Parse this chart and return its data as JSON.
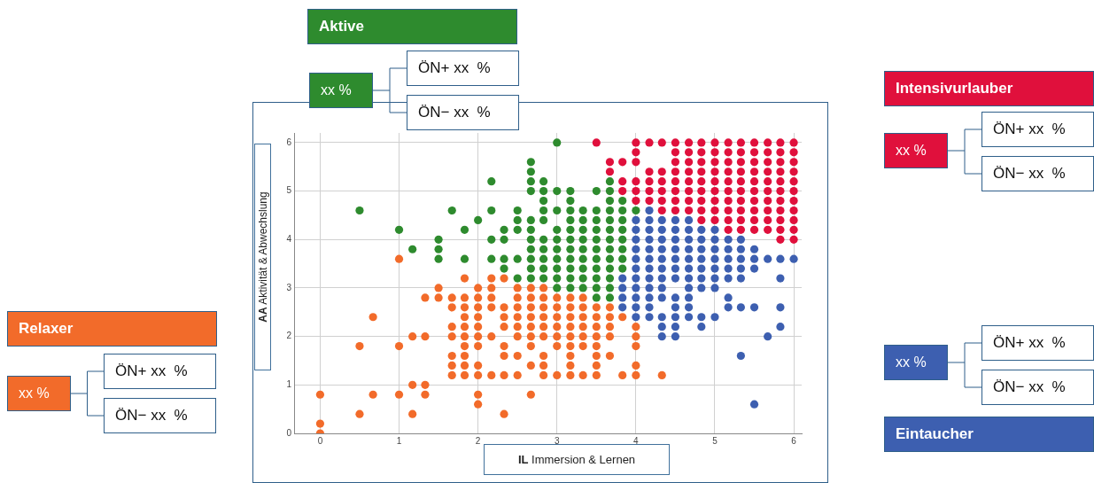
{
  "chart_data": {
    "type": "scatter",
    "xlabel": "IL Immersion & Lernen",
    "ylabel": "AA Aktivität & Abwechslung",
    "xlim": [
      -0.33,
      6.1
    ],
    "ylim": [
      0,
      6.2
    ],
    "xticks": [
      0,
      1,
      2,
      3,
      4,
      5,
      6
    ],
    "yticks": [
      0,
      1,
      2,
      3,
      4,
      5,
      6
    ],
    "grid": true,
    "marker": "circle",
    "series": [
      {
        "name": "Aktive",
        "color": "#2e8b2e",
        "x": [
          3,
          2.67,
          2.67,
          2.17,
          2.67,
          2.83,
          3.67,
          2.67,
          2.83,
          3,
          3.17,
          3.5,
          3.67,
          2.83,
          3.17,
          3.67,
          3.83,
          0.5,
          1.67,
          2.17,
          2.5,
          2.83,
          3,
          3.17,
          3.33,
          3.5,
          3.67,
          3.83,
          4,
          2,
          2.5,
          2.67,
          2.83,
          3.17,
          3.33,
          3.5,
          3.67,
          3.83,
          1,
          1.83,
          2.33,
          2.5,
          2.67,
          3,
          3.17,
          3.33,
          3.5,
          3.67,
          3.83,
          1.5,
          2.17,
          2.33,
          2.67,
          2.83,
          3,
          3.17,
          3.33,
          3.5,
          3.67,
          3.83,
          1.17,
          1.5,
          2.67,
          2.83,
          3,
          3.17,
          3.33,
          3.5,
          3.67,
          3.83,
          1.5,
          1.83,
          2.17,
          2.33,
          2.5,
          2.67,
          2.83,
          3,
          3.17,
          3.33,
          3.5,
          3.67,
          3.83,
          2.33,
          2.67,
          2.83,
          3,
          3.17,
          3.33,
          3.5,
          3.67,
          3.83,
          2.5,
          2.67,
          2.83,
          3,
          3.17,
          3.33,
          3.5,
          3.67,
          3,
          3.17,
          3.33,
          3.5,
          3.67,
          3.5,
          3.67
        ],
        "values": [
          6,
          5.6,
          5.4,
          5.2,
          5.2,
          5.2,
          5.2,
          5,
          5,
          5,
          5,
          5,
          5,
          4.8,
          4.8,
          4.8,
          4.8,
          4.6,
          4.6,
          4.6,
          4.6,
          4.6,
          4.6,
          4.6,
          4.6,
          4.6,
          4.6,
          4.6,
          4.6,
          4.4,
          4.4,
          4.4,
          4.4,
          4.4,
          4.4,
          4.4,
          4.4,
          4.4,
          4.2,
          4.2,
          4.2,
          4.2,
          4.2,
          4.2,
          4.2,
          4.2,
          4.2,
          4.2,
          4.2,
          4,
          4,
          4,
          4,
          4,
          4,
          4,
          4,
          4,
          4,
          4,
          3.8,
          3.8,
          3.8,
          3.8,
          3.8,
          3.8,
          3.8,
          3.8,
          3.8,
          3.8,
          3.6,
          3.6,
          3.6,
          3.6,
          3.6,
          3.6,
          3.6,
          3.6,
          3.6,
          3.6,
          3.6,
          3.6,
          3.6,
          3.4,
          3.4,
          3.4,
          3.4,
          3.4,
          3.4,
          3.4,
          3.4,
          3.4,
          3.2,
          3.2,
          3.2,
          3.2,
          3.2,
          3.2,
          3.2,
          3.2,
          3,
          3,
          3,
          3,
          3,
          2.8,
          2.8
        ]
      },
      {
        "name": "Intensivurlauber",
        "color": "#e0103c",
        "x": [
          3.5,
          4,
          4.17,
          4.33,
          4.5,
          4.67,
          4.83,
          5,
          5.17,
          5.33,
          5.5,
          5.67,
          5.83,
          6,
          4,
          4.5,
          4.67,
          4.83,
          5,
          5.17,
          5.33,
          5.5,
          5.67,
          5.83,
          6,
          3.67,
          3.83,
          4,
          4.5,
          4.67,
          4.83,
          5,
          5.17,
          5.33,
          5.5,
          5.67,
          5.83,
          6,
          3.67,
          4.17,
          4.33,
          4.5,
          4.67,
          4.83,
          5,
          5.17,
          5.33,
          5.5,
          5.67,
          5.83,
          6,
          3.83,
          4,
          4.17,
          4.33,
          4.5,
          4.67,
          4.83,
          5,
          5.17,
          5.33,
          5.5,
          5.67,
          5.83,
          6,
          3.83,
          4,
          4.17,
          4.33,
          4.5,
          4.67,
          4.83,
          5,
          5.17,
          5.33,
          5.5,
          5.67,
          5.83,
          6,
          4,
          4.17,
          4.33,
          4.5,
          4.67,
          4.83,
          5,
          5.17,
          5.33,
          5.5,
          5.67,
          5.83,
          6,
          4.33,
          4.5,
          4.67,
          4.83,
          5,
          5.17,
          5.33,
          5.5,
          5.67,
          5.83,
          6,
          4.83,
          5,
          5.17,
          5.33,
          5.5,
          5.67,
          5.83,
          6,
          5.17,
          5.33,
          5.5,
          5.67,
          5.83,
          6,
          5.83,
          6
        ],
        "values": [
          6,
          6,
          6,
          6,
          6,
          6,
          6,
          6,
          6,
          6,
          6,
          6,
          6,
          6,
          5.8,
          5.8,
          5.8,
          5.8,
          5.8,
          5.8,
          5.8,
          5.8,
          5.8,
          5.8,
          5.8,
          5.6,
          5.6,
          5.6,
          5.6,
          5.6,
          5.6,
          5.6,
          5.6,
          5.6,
          5.6,
          5.6,
          5.6,
          5.6,
          5.4,
          5.4,
          5.4,
          5.4,
          5.4,
          5.4,
          5.4,
          5.4,
          5.4,
          5.4,
          5.4,
          5.4,
          5.4,
          5.2,
          5.2,
          5.2,
          5.2,
          5.2,
          5.2,
          5.2,
          5.2,
          5.2,
          5.2,
          5.2,
          5.2,
          5.2,
          5.2,
          5,
          5,
          5,
          5,
          5,
          5,
          5,
          5,
          5,
          5,
          5,
          5,
          5,
          5,
          4.8,
          4.8,
          4.8,
          4.8,
          4.8,
          4.8,
          4.8,
          4.8,
          4.8,
          4.8,
          4.8,
          4.8,
          4.8,
          4.6,
          4.6,
          4.6,
          4.6,
          4.6,
          4.6,
          4.6,
          4.6,
          4.6,
          4.6,
          4.6,
          4.4,
          4.4,
          4.4,
          4.4,
          4.4,
          4.4,
          4.4,
          4.4,
          4.2,
          4.2,
          4.2,
          4.2,
          4.2,
          4.2,
          4,
          4
        ]
      },
      {
        "name": "Relaxer",
        "color": "#f26b2a",
        "x": [
          1,
          1.83,
          2.17,
          2.33,
          1.5,
          2,
          2.17,
          2.5,
          2.67,
          2.83,
          1.33,
          1.5,
          1.67,
          1.83,
          2,
          2.17,
          2.5,
          2.67,
          2.83,
          3,
          3.17,
          3.33,
          1.67,
          1.83,
          2,
          2.17,
          2.33,
          2.5,
          2.67,
          2.83,
          3,
          3.17,
          3.33,
          3.5,
          3.67,
          0.67,
          1.83,
          2,
          2.33,
          2.5,
          2.67,
          2.83,
          3,
          3.17,
          3.33,
          3.5,
          3.67,
          3.83,
          1.67,
          1.83,
          2,
          2.33,
          2.5,
          2.67,
          2.83,
          3,
          3.17,
          3.33,
          3.5,
          3.67,
          4,
          1.17,
          1.33,
          1.67,
          1.83,
          2,
          2.17,
          2.5,
          2.67,
          2.83,
          3,
          3.17,
          3.33,
          3.5,
          3.67,
          4,
          0.5,
          1,
          1.83,
          2,
          2.33,
          2.67,
          3,
          3.17,
          3.33,
          3.5,
          4,
          1.67,
          1.83,
          2.33,
          2.5,
          2.83,
          3.17,
          3.5,
          3.67,
          1.67,
          1.83,
          2,
          2.67,
          2.83,
          3.17,
          3.5,
          4,
          1.67,
          1.83,
          2,
          2.17,
          2.33,
          2.5,
          2.83,
          3,
          3.17,
          3.33,
          3.5,
          3.83,
          4,
          4.33,
          1.17,
          1.33,
          0,
          0.67,
          1,
          1.33,
          2,
          2.67,
          2,
          0.5,
          1.17,
          2.33,
          0,
          0
        ],
        "values": [
          3.6,
          3.2,
          3.2,
          3.2,
          3,
          3,
          3,
          3,
          3,
          3,
          2.8,
          2.8,
          2.8,
          2.8,
          2.8,
          2.8,
          2.8,
          2.8,
          2.8,
          2.8,
          2.8,
          2.8,
          2.6,
          2.6,
          2.6,
          2.6,
          2.6,
          2.6,
          2.6,
          2.6,
          2.6,
          2.6,
          2.6,
          2.6,
          2.6,
          2.4,
          2.4,
          2.4,
          2.4,
          2.4,
          2.4,
          2.4,
          2.4,
          2.4,
          2.4,
          2.4,
          2.4,
          2.4,
          2.2,
          2.2,
          2.2,
          2.2,
          2.2,
          2.2,
          2.2,
          2.2,
          2.2,
          2.2,
          2.2,
          2.2,
          2.2,
          2,
          2,
          2,
          2,
          2,
          2,
          2,
          2,
          2,
          2,
          2,
          2,
          2,
          2,
          2,
          1.8,
          1.8,
          1.8,
          1.8,
          1.8,
          1.8,
          1.8,
          1.8,
          1.8,
          1.8,
          1.8,
          1.6,
          1.6,
          1.6,
          1.6,
          1.6,
          1.6,
          1.6,
          1.6,
          1.4,
          1.4,
          1.4,
          1.4,
          1.4,
          1.4,
          1.4,
          1.4,
          1.2,
          1.2,
          1.2,
          1.2,
          1.2,
          1.2,
          1.2,
          1.2,
          1.2,
          1.2,
          1.2,
          1.2,
          1.2,
          1.2,
          1,
          1,
          0.8,
          0.8,
          0.8,
          0.8,
          0.8,
          0.8,
          0.6,
          0.4,
          0.4,
          0.4,
          0.2,
          0
        ]
      },
      {
        "name": "Eintaucher",
        "color": "#3d5fb0",
        "x": [
          4.17,
          4,
          4.17,
          4.33,
          4.5,
          4.67,
          4,
          4.17,
          4.33,
          4.5,
          4.67,
          4.83,
          5,
          4,
          4.17,
          4.33,
          4.5,
          4.67,
          4.83,
          5,
          5.17,
          5.33,
          4,
          4.17,
          4.33,
          4.5,
          4.67,
          4.83,
          5,
          5.17,
          5.33,
          5.5,
          4,
          4.17,
          4.33,
          4.5,
          4.67,
          4.83,
          5,
          5.17,
          5.33,
          5.5,
          5.67,
          5.83,
          6,
          4,
          4.17,
          4.33,
          4.5,
          4.67,
          4.83,
          5,
          5.17,
          5.33,
          5.5,
          3.83,
          4,
          4.17,
          4.33,
          4.5,
          4.67,
          4.83,
          5,
          5.17,
          5.33,
          5.83,
          3.83,
          4,
          4.17,
          4.33,
          4.67,
          4.83,
          5,
          3.83,
          4,
          4.17,
          4.33,
          4.5,
          4.67,
          5.17,
          3.83,
          4,
          4.17,
          4.5,
          4.67,
          5.17,
          5.33,
          5.5,
          5.83,
          4,
          4.17,
          4.33,
          4.5,
          4.67,
          4.83,
          5,
          4.33,
          4.5,
          4.83,
          5.83,
          4.33,
          4.5,
          5.67,
          5.33,
          5.5
        ],
        "values": [
          4.6,
          4.4,
          4.4,
          4.4,
          4.4,
          4.4,
          4.2,
          4.2,
          4.2,
          4.2,
          4.2,
          4.2,
          4.2,
          4,
          4,
          4,
          4,
          4,
          4,
          4,
          4,
          4,
          3.8,
          3.8,
          3.8,
          3.8,
          3.8,
          3.8,
          3.8,
          3.8,
          3.8,
          3.8,
          3.6,
          3.6,
          3.6,
          3.6,
          3.6,
          3.6,
          3.6,
          3.6,
          3.6,
          3.6,
          3.6,
          3.6,
          3.6,
          3.4,
          3.4,
          3.4,
          3.4,
          3.4,
          3.4,
          3.4,
          3.4,
          3.4,
          3.4,
          3.2,
          3.2,
          3.2,
          3.2,
          3.2,
          3.2,
          3.2,
          3.2,
          3.2,
          3.2,
          3.2,
          3,
          3,
          3,
          3,
          3,
          3,
          3,
          2.8,
          2.8,
          2.8,
          2.8,
          2.8,
          2.8,
          2.8,
          2.6,
          2.6,
          2.6,
          2.6,
          2.6,
          2.6,
          2.6,
          2.6,
          2.6,
          2.4,
          2.4,
          2.4,
          2.4,
          2.4,
          2.4,
          2.4,
          2.2,
          2.2,
          2.2,
          2.2,
          2,
          2,
          2,
          1.6,
          0.6
        ]
      }
    ],
    "annotations": [
      "xx %",
      "ÖN+ xx  %",
      "ÖN− xx  %",
      "xx %",
      "ÖN+ xx  %",
      "ÖN− xx  %",
      "xx %",
      "ÖN+ xx  %",
      "ÖN− xx  %",
      "xx %",
      "ÖN+ xx  %",
      "ÖN− xx  %"
    ]
  }
}
